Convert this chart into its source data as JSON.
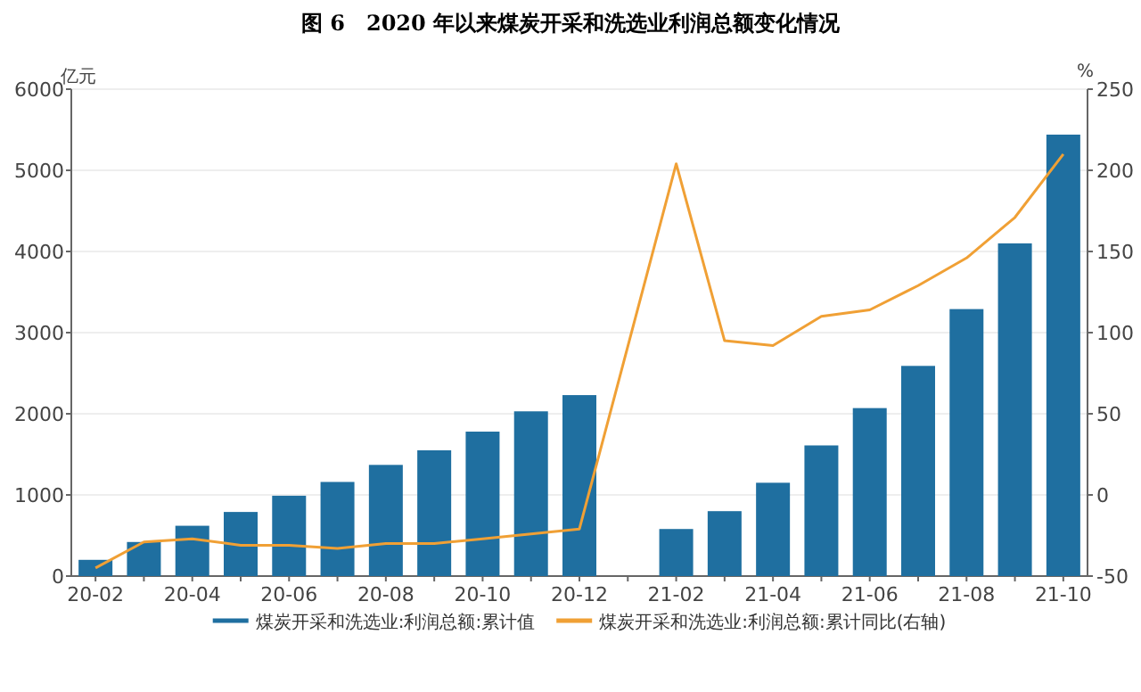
{
  "chart_data": {
    "type": "bar",
    "title": "图 6　2020 年以来煤炭开采和洗选业利润总额变化情况",
    "ylabel": "亿元",
    "y2label": "%",
    "categories": [
      "20-02",
      null,
      "20-04",
      null,
      "20-06",
      null,
      "20-08",
      null,
      "20-10",
      null,
      "20-12",
      null,
      "21-02",
      null,
      "21-04",
      null,
      "21-06",
      null,
      "21-08",
      null,
      "21-10"
    ],
    "series": [
      {
        "name": "煤炭开采和洗选业:利润总额:累计值",
        "color": "#1f6fa0",
        "values": [
          200,
          420,
          620,
          790,
          990,
          1160,
          1370,
          1550,
          1780,
          2030,
          2230,
          null,
          580,
          800,
          1150,
          1610,
          2070,
          2590,
          3290,
          4100,
          5440
        ]
      },
      {
        "name": "煤炭开采和洗选业:利润总额:累计同比(右轴)",
        "type": "line",
        "axis": "y2",
        "color": "#f0a035",
        "values": [
          -45,
          -29,
          -27,
          -31,
          -31,
          -33,
          -30,
          -30,
          -27,
          -24,
          -21,
          null,
          204,
          95,
          92,
          110,
          114,
          129,
          146,
          171,
          210
        ]
      }
    ],
    "ylim": [
      0,
      6000
    ],
    "yticks": [
      0,
      1000,
      2000,
      3000,
      4000,
      5000,
      6000
    ],
    "y2lim": [
      -50,
      250
    ],
    "y2ticks": [
      -50,
      0,
      50,
      100,
      150,
      200,
      250
    ],
    "grid": "y",
    "legend": "bottom"
  }
}
